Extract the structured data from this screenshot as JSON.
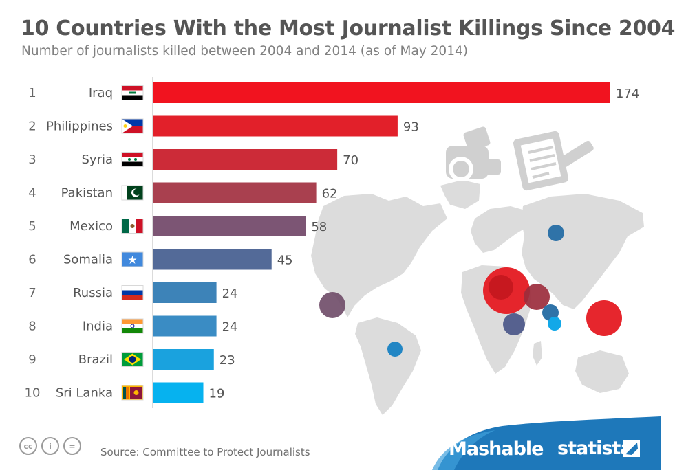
{
  "title": "10 Countries With the Most Journalist Killings Since 2004",
  "subtitle": "Number of journalists killed between 2004 and 2014 (as of May 2014)",
  "source": "Source: Committee to Protect Journalists",
  "brands": {
    "mashable": "Mashable",
    "statista": "statista"
  },
  "license_icons": [
    "cc",
    "i",
    "="
  ],
  "chart_data": {
    "type": "bar",
    "orientation": "horizontal",
    "title": "10 Countries With the Most Journalist Killings Since 2004",
    "subtitle": "Number of journalists killed between 2004 and 2014 (as of May 2014)",
    "xlim": [
      0,
      174
    ],
    "categories": [
      "Iraq",
      "Philippines",
      "Syria",
      "Pakistan",
      "Mexico",
      "Somalia",
      "Russia",
      "India",
      "Brazil",
      "Sri Lanka"
    ],
    "ranks": [
      "1",
      "2",
      "3",
      "4",
      "5",
      "6",
      "7",
      "8",
      "9",
      "10"
    ],
    "values": [
      174,
      93,
      70,
      62,
      58,
      45,
      24,
      24,
      23,
      19
    ],
    "colors": [
      "#f1131f",
      "#e2202a",
      "#cc2b38",
      "#a9404f",
      "#7c5574",
      "#536a98",
      "#3d83b8",
      "#3a8cc4",
      "#1aa2de",
      "#06b2ef"
    ],
    "flags": [
      "flag-iraq",
      "flag-philippines",
      "flag-syria",
      "flag-pakistan",
      "flag-mexico",
      "flag-somalia",
      "flag-russia",
      "flag-india",
      "flag-brazil",
      "flag-sri-lanka"
    ]
  }
}
